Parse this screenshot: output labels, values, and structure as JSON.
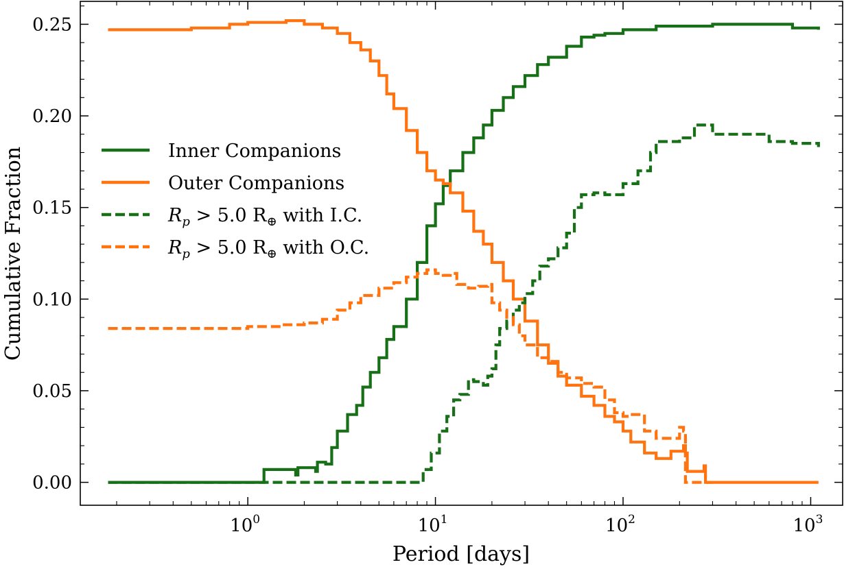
{
  "chart_data": {
    "type": "line",
    "xscale": "log",
    "xlabel": "Period [days]",
    "ylabel": "Cumulative Fraction",
    "xlim": [
      0.128,
      1480
    ],
    "ylim": [
      -0.0125,
      0.2625
    ],
    "xticks": [
      {
        "base": "10",
        "exp": "0",
        "value": 1
      },
      {
        "base": "10",
        "exp": "1",
        "value": 10
      },
      {
        "base": "10",
        "exp": "2",
        "value": 100
      },
      {
        "base": "10",
        "exp": "3",
        "value": 1000
      }
    ],
    "yticks": [
      {
        "label": "0.00",
        "value": 0.0
      },
      {
        "label": "0.05",
        "value": 0.05
      },
      {
        "label": "0.10",
        "value": 0.1
      },
      {
        "label": "0.15",
        "value": 0.15
      },
      {
        "label": "0.20",
        "value": 0.2
      },
      {
        "label": "0.25",
        "value": 0.25
      }
    ],
    "legend_position": "center-left",
    "series": [
      {
        "name": "Inner Companions",
        "legend_label": "Inner Companions",
        "color": "#176f17",
        "dash": "solid",
        "x": [
          0.18,
          0.5,
          1.0,
          1.2,
          1.22,
          1.8,
          1.85,
          2.3,
          2.35,
          2.6,
          2.8,
          3.0,
          3.4,
          3.8,
          4.1,
          4.5,
          5.0,
          5.5,
          6.0,
          7.0,
          8.0,
          9.0,
          10.0,
          11.0,
          12.0,
          14.0,
          16.0,
          18.0,
          20.0,
          23.0,
          26.0,
          30.0,
          35.0,
          40.0,
          50.0,
          60.0,
          70.0,
          80.0,
          100.0,
          150.0,
          200.0,
          300.0,
          500.0,
          800.0,
          1100.0
        ],
        "y": [
          0.0,
          0.0,
          0.0,
          0.0,
          0.007,
          0.004,
          0.008,
          0.006,
          0.011,
          0.01,
          0.019,
          0.028,
          0.037,
          0.042,
          0.052,
          0.06,
          0.068,
          0.078,
          0.085,
          0.1,
          0.12,
          0.14,
          0.152,
          0.162,
          0.17,
          0.18,
          0.188,
          0.195,
          0.203,
          0.21,
          0.216,
          0.222,
          0.228,
          0.232,
          0.238,
          0.243,
          0.244,
          0.245,
          0.247,
          0.249,
          0.249,
          0.25,
          0.25,
          0.248,
          0.247
        ]
      },
      {
        "name": "Outer Companions",
        "legend_label": "Outer Companions",
        "color": "#ff7410",
        "dash": "solid",
        "x": [
          0.18,
          0.5,
          0.8,
          1.0,
          1.3,
          1.6,
          2.0,
          2.5,
          3.0,
          3.5,
          4.0,
          4.5,
          5.0,
          5.5,
          6.0,
          7.0,
          8.0,
          9.0,
          10.0,
          11.0,
          12.0,
          14.0,
          16.0,
          18.0,
          20.0,
          23.0,
          26.0,
          30.0,
          35.0,
          40.0,
          45.0,
          50.0,
          60.0,
          70.0,
          80.0,
          90.0,
          100.0,
          110.0,
          130.0,
          150.0,
          180.0,
          210.0,
          215.0,
          220.0,
          270.0,
          275.0,
          400.0,
          1100.0
        ],
        "y": [
          0.247,
          0.248,
          0.25,
          0.251,
          0.251,
          0.252,
          0.25,
          0.248,
          0.245,
          0.24,
          0.236,
          0.23,
          0.222,
          0.212,
          0.204,
          0.192,
          0.18,
          0.17,
          0.165,
          0.163,
          0.158,
          0.148,
          0.137,
          0.13,
          0.12,
          0.11,
          0.1,
          0.088,
          0.075,
          0.065,
          0.058,
          0.053,
          0.047,
          0.042,
          0.036,
          0.033,
          0.028,
          0.022,
          0.016,
          0.013,
          0.017,
          0.02,
          0.016,
          0.006,
          0.009,
          0.0,
          0.0,
          0.0
        ]
      },
      {
        "name": "Rp > 5.0 R⊕ with I.C.",
        "legend_label": {
          "r": "R",
          "sub": "p",
          "text": " > 5.0 R",
          "earth": "⊕",
          "tail": " with I.C."
        },
        "color": "#176f17",
        "dash": "dashed",
        "x": [
          0.18,
          1.0,
          8.0,
          8.5,
          8.6,
          9.5,
          10.5,
          11.5,
          12.5,
          13.5,
          15.0,
          16.0,
          17.0,
          18.0,
          19.0,
          20.0,
          21.0,
          22.0,
          24.0,
          26.0,
          28.0,
          30.0,
          33.0,
          36.0,
          40.0,
          45.0,
          50.0,
          55.0,
          60.0,
          70.0,
          80.0,
          100.0,
          120.0,
          140.0,
          150.0,
          200.0,
          240.0,
          300.0,
          400.0,
          600.0,
          800.0,
          1100.0
        ],
        "y": [
          0.0,
          0.0,
          0.0,
          0.0,
          0.007,
          0.016,
          0.028,
          0.036,
          0.045,
          0.048,
          0.056,
          0.055,
          0.055,
          0.053,
          0.058,
          0.062,
          0.075,
          0.084,
          0.088,
          0.094,
          0.098,
          0.103,
          0.11,
          0.118,
          0.122,
          0.128,
          0.136,
          0.15,
          0.157,
          0.158,
          0.157,
          0.163,
          0.17,
          0.18,
          0.186,
          0.188,
          0.195,
          0.19,
          0.19,
          0.186,
          0.185,
          0.183
        ]
      },
      {
        "name": "Rp > 5.0 R⊕ with O.C.",
        "legend_label": {
          "r": "R",
          "sub": "p",
          "text": " > 5.0 R",
          "earth": "⊕",
          "tail": " with O.C."
        },
        "color": "#ff7410",
        "dash": "dashed",
        "x": [
          0.18,
          0.5,
          0.8,
          1.0,
          1.5,
          2.0,
          2.5,
          3.0,
          3.5,
          4.0,
          5.0,
          6.0,
          7.0,
          8.0,
          9.0,
          10.0,
          11.0,
          12.0,
          13.0,
          15.0,
          17.0,
          19.0,
          20.0,
          22.0,
          24.0,
          26.0,
          28.0,
          30.0,
          35.0,
          40.0,
          45.0,
          50.0,
          60.0,
          70.0,
          80.0,
          90.0,
          100.0,
          110.0,
          130.0,
          150.0,
          200.0,
          210.0,
          215.0,
          300.0
        ],
        "y": [
          0.084,
          0.084,
          0.084,
          0.085,
          0.086,
          0.087,
          0.089,
          0.094,
          0.098,
          0.102,
          0.106,
          0.109,
          0.112,
          0.114,
          0.116,
          0.114,
          0.113,
          0.114,
          0.108,
          0.106,
          0.107,
          0.108,
          0.098,
          0.094,
          0.09,
          0.086,
          0.08,
          0.075,
          0.068,
          0.066,
          0.06,
          0.057,
          0.054,
          0.052,
          0.045,
          0.038,
          0.036,
          0.037,
          0.028,
          0.024,
          0.03,
          0.028,
          0.0,
          0.0
        ]
      }
    ]
  }
}
